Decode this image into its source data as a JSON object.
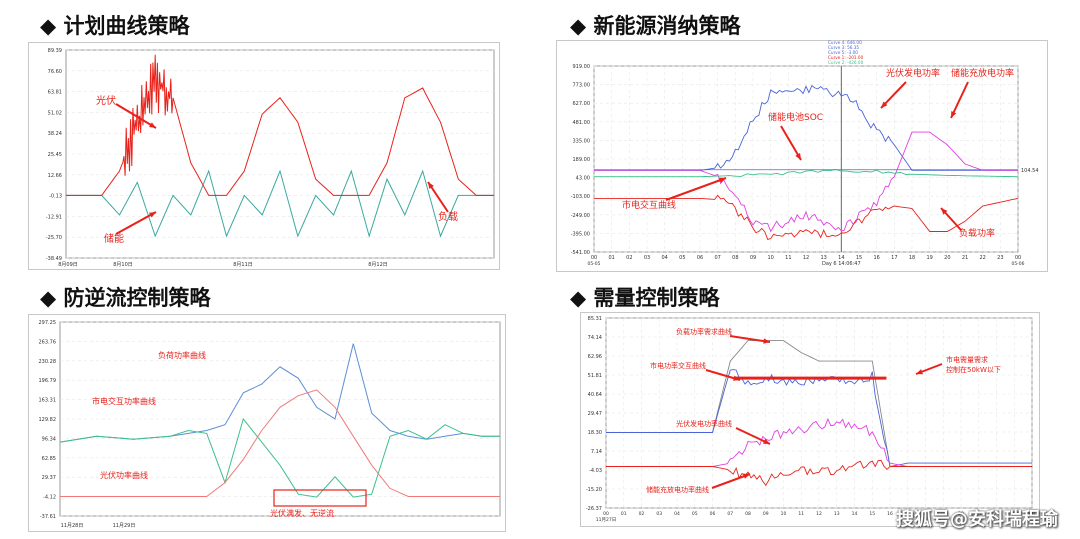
{
  "headers": {
    "plan": "◆ 计划曲线策略",
    "newenergy": "◆ 新能源消纳策略",
    "antireverse": "◆ 防逆流控制策略",
    "demand": "◆ 需量控制策略"
  },
  "watermark": "搜狐号@安科瑞程瑜",
  "colors": {
    "red": "#e8221b",
    "teal": "#3aa8a0",
    "green": "#3cc08a",
    "blue": "#4b63d9",
    "magenta": "#e040e0",
    "gray": "#888888"
  },
  "chart_data": [
    {
      "id": "plan",
      "type": "line",
      "yticks": [
        "89.39",
        "76.60",
        "63.81",
        "51.02",
        "38.24",
        "25.45",
        "12.66",
        "-0.13",
        "-12.91",
        "-25.70",
        "-38.49"
      ],
      "xticks": [
        "8月09日",
        "8月10日",
        "8月11日",
        "8月12日"
      ],
      "annotations": [
        "光伏",
        "储能",
        "负载"
      ],
      "series": [
        {
          "name": "光伏",
          "color": "#e8221b",
          "x": [
            0,
            0.5,
            1,
            1.5,
            2,
            2.5,
            3,
            3.5,
            4,
            4.5,
            5,
            5.5,
            6,
            6.5,
            7,
            7.5,
            8,
            8.5,
            9,
            9.5,
            10,
            10.5,
            11,
            11.5,
            12
          ],
          "y": [
            0,
            0,
            0,
            15,
            45,
            70,
            60,
            20,
            0,
            0,
            15,
            50,
            60,
            45,
            10,
            0,
            0,
            0,
            20,
            60,
            66,
            45,
            10,
            0,
            0
          ]
        },
        {
          "name": "储能",
          "color": "#3aa8a0",
          "x": [
            0,
            1,
            1.5,
            2,
            2.5,
            3,
            3.5,
            4,
            4.5,
            5,
            5.5,
            6,
            6.5,
            7,
            7.5,
            8,
            8.5,
            9,
            9.5,
            10,
            10.5,
            11,
            11.5,
            12
          ],
          "y": [
            0,
            0,
            -12,
            8,
            -25,
            0,
            -12,
            15,
            -25,
            0,
            -12,
            15,
            -25,
            0,
            -12,
            15,
            -25,
            10,
            -12,
            15,
            -25,
            0,
            0,
            0
          ]
        }
      ]
    },
    {
      "id": "newenergy",
      "type": "line",
      "legend": [
        "Curve 4: 646.00",
        "Curve 3: 56.35",
        "Curve 5: -3.00",
        "Curve 1: -201.00",
        "Curve 2: -426.00"
      ],
      "yticks": [
        "919.00",
        "773.00",
        "627.00",
        "481.00",
        "335.00",
        "189.00",
        "43.00",
        "-103.00",
        "-249.00",
        "-395.00",
        "-541.00"
      ],
      "right_value": "104.54",
      "xticks": [
        "00",
        "01",
        "02",
        "03",
        "04",
        "05",
        "06",
        "07",
        "08",
        "09",
        "10",
        "11",
        "12",
        "13",
        "14",
        "15",
        "16",
        "17",
        "18",
        "19",
        "20",
        "21",
        "22",
        "23",
        "00"
      ],
      "x_start": "05-05",
      "x_end": "05-06",
      "cursor": "Day 6 14:06:47",
      "annotations": [
        "光伏发电功率",
        "储能充放电功率",
        "储能电池SOC",
        "市电交互曲线",
        "负载功率"
      ],
      "series": [
        {
          "name": "光伏发电功率",
          "color": "#4b63d9",
          "x": [
            0,
            5,
            6,
            7,
            8,
            9,
            10,
            11,
            12,
            13,
            14,
            15,
            16,
            17,
            18,
            19,
            24
          ],
          "y": [
            100,
            100,
            100,
            120,
            250,
            500,
            700,
            720,
            740,
            720,
            700,
            600,
            400,
            300,
            100,
            100,
            100
          ]
        },
        {
          "name": "储能充放电功率",
          "color": "#e040e0",
          "x": [
            0,
            6,
            7,
            8,
            9,
            10,
            11,
            12,
            13,
            14,
            15,
            16,
            17,
            18,
            19,
            20,
            21,
            22,
            24
          ],
          "y": [
            100,
            100,
            50,
            -100,
            -300,
            -350,
            -300,
            -250,
            -300,
            -380,
            -250,
            -150,
            50,
            400,
            400,
            300,
            150,
            100,
            100
          ]
        },
        {
          "name": "储能电池SOC",
          "color": "#3cc08a",
          "x": [
            0,
            6,
            8,
            10,
            12,
            14,
            16,
            18,
            20,
            22,
            24
          ],
          "y": [
            50,
            50,
            60,
            70,
            90,
            100,
            90,
            70,
            60,
            55,
            50
          ]
        },
        {
          "name": "市电交互曲线",
          "color": "#e8221b",
          "x": [
            0,
            6,
            7,
            8,
            9,
            10,
            11,
            12,
            13,
            14,
            15,
            16,
            17,
            18,
            19,
            20,
            21,
            22,
            24
          ],
          "y": [
            -120,
            -120,
            -130,
            -200,
            -350,
            -420,
            -400,
            -380,
            -400,
            -420,
            -300,
            -220,
            -180,
            -200,
            -380,
            -380,
            -300,
            -180,
            -120
          ]
        },
        {
          "name": "负载功率",
          "color": "#5566cc",
          "x": [
            0,
            24
          ],
          "y": [
            104.54,
            104.54
          ]
        }
      ]
    },
    {
      "id": "antireverse",
      "type": "line",
      "yticks": [
        "297.25",
        "263.76",
        "230.28",
        "196.79",
        "163.31",
        "129.82",
        "96.34",
        "62.85",
        "29.37",
        "-4.12",
        "-37.61"
      ],
      "xticks": [
        "11月28日",
        "11月29日"
      ],
      "annotations": [
        "负荷功率曲线",
        "市电交互功率曲线",
        "光伏功率曲线",
        "光伏满发、无逆流"
      ],
      "series": [
        {
          "name": "负荷功率曲线",
          "color": "#5b8fd6",
          "x": [
            0,
            2,
            4,
            6,
            7,
            8,
            9,
            10,
            11,
            12,
            13,
            14,
            15,
            16,
            17,
            18,
            19,
            20,
            21,
            22,
            23,
            24
          ],
          "y": [
            90,
            100,
            95,
            100,
            105,
            110,
            120,
            175,
            190,
            220,
            200,
            150,
            130,
            260,
            140,
            110,
            100,
            95,
            100,
            105,
            100,
            100
          ]
        },
        {
          "name": "市电交互功率曲线",
          "color": "#3cc08a",
          "x": [
            0,
            2,
            4,
            6,
            7,
            8,
            9,
            10,
            11,
            12,
            13,
            14,
            15,
            16,
            17,
            18,
            19,
            20,
            21,
            22,
            23,
            24
          ],
          "y": [
            90,
            100,
            95,
            100,
            110,
            105,
            20,
            130,
            90,
            50,
            0,
            -5,
            30,
            -5,
            0,
            100,
            110,
            95,
            120,
            105,
            100,
            100
          ]
        },
        {
          "name": "光伏功率曲线",
          "color": "#f07a7a",
          "x": [
            0,
            6,
            8,
            9,
            10,
            11,
            12,
            13,
            14,
            15,
            16,
            17,
            18,
            19,
            20,
            24
          ],
          "y": [
            -4,
            -4,
            -4,
            20,
            60,
            110,
            150,
            170,
            180,
            150,
            100,
            50,
            10,
            -4,
            -4,
            -4
          ]
        }
      ]
    },
    {
      "id": "demand",
      "type": "line",
      "yticks": [
        "85.31",
        "74.14",
        "62.96",
        "51.81",
        "40.64",
        "29.47",
        "18.30",
        "7.14",
        "-4.03",
        "-15.20",
        "-26.37"
      ],
      "xticks": [
        "00",
        "01",
        "02",
        "03",
        "04",
        "05",
        "06",
        "07",
        "08",
        "09",
        "10",
        "11",
        "12",
        "13",
        "14",
        "15",
        "16",
        "17",
        "18",
        "19",
        "20",
        "21",
        "22",
        "23",
        "00"
      ],
      "x_start": "11月27日",
      "annotations": [
        "负载功率需求曲线",
        "市电功率交互曲线",
        "市电需量需求",
        "控制在50kW以下",
        "光伏发电功率曲线",
        "储能充放电功率曲线"
      ],
      "series": [
        {
          "name": "负载功率需求曲线",
          "color": "#888888",
          "x": [
            0,
            6,
            7,
            8,
            9,
            10,
            11,
            12,
            13,
            14,
            15,
            16,
            17,
            24
          ],
          "y": [
            18,
            18,
            60,
            72,
            72,
            72,
            65,
            60,
            60,
            60,
            60,
            -2,
            -2,
            -2
          ]
        },
        {
          "name": "市电功率交互曲线",
          "color": "#4b63d9",
          "x": [
            0,
            6,
            7,
            8,
            9,
            10,
            11,
            12,
            13,
            14,
            15,
            16,
            17,
            24
          ],
          "y": [
            18,
            18,
            55,
            48,
            50,
            48,
            49,
            48,
            50,
            49,
            51,
            -2,
            0,
            0
          ]
        },
        {
          "name": "光伏发电功率曲线",
          "color": "#e040e0",
          "x": [
            0,
            6,
            7,
            8,
            9,
            10,
            11,
            12,
            13,
            14,
            15,
            16,
            17,
            24
          ],
          "y": [
            -2,
            -2,
            0,
            10,
            15,
            18,
            20,
            22,
            25,
            22,
            18,
            0,
            -2,
            -2
          ]
        },
        {
          "name": "储能充放电功率曲线",
          "color": "#e8221b",
          "x": [
            0,
            6,
            7,
            8,
            9,
            10,
            11,
            12,
            13,
            14,
            15,
            16,
            17,
            24
          ],
          "y": [
            -2,
            -2,
            -4,
            -8,
            -10,
            -8,
            -5,
            -3,
            -5,
            -2,
            0,
            -2,
            -2,
            -2
          ]
        }
      ]
    }
  ]
}
